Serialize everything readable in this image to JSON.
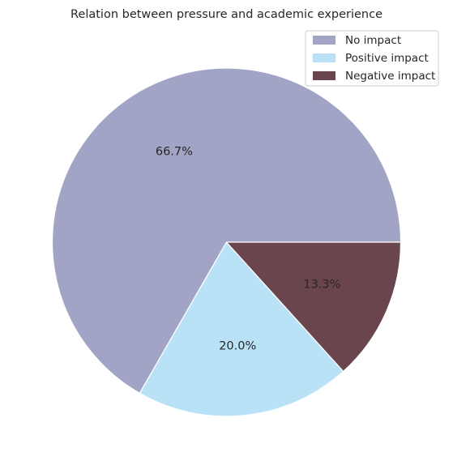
{
  "chart_data": {
    "type": "pie",
    "title": "Relation between pressure and academic experience",
    "labels": [
      "No impact",
      "Positive impact",
      "Negative impact"
    ],
    "values": [
      66.7,
      20.0,
      13.3
    ],
    "value_labels": [
      "66.7%",
      "20.0%",
      "13.3%"
    ],
    "colors": [
      "#a1a4c4",
      "#b9e2f7",
      "#6b454d"
    ],
    "start_angle_deg": 0,
    "direction": "counterclockwise",
    "legend": {
      "position": "top-right",
      "entries": [
        "No impact",
        "Positive impact",
        "Negative impact"
      ]
    }
  }
}
